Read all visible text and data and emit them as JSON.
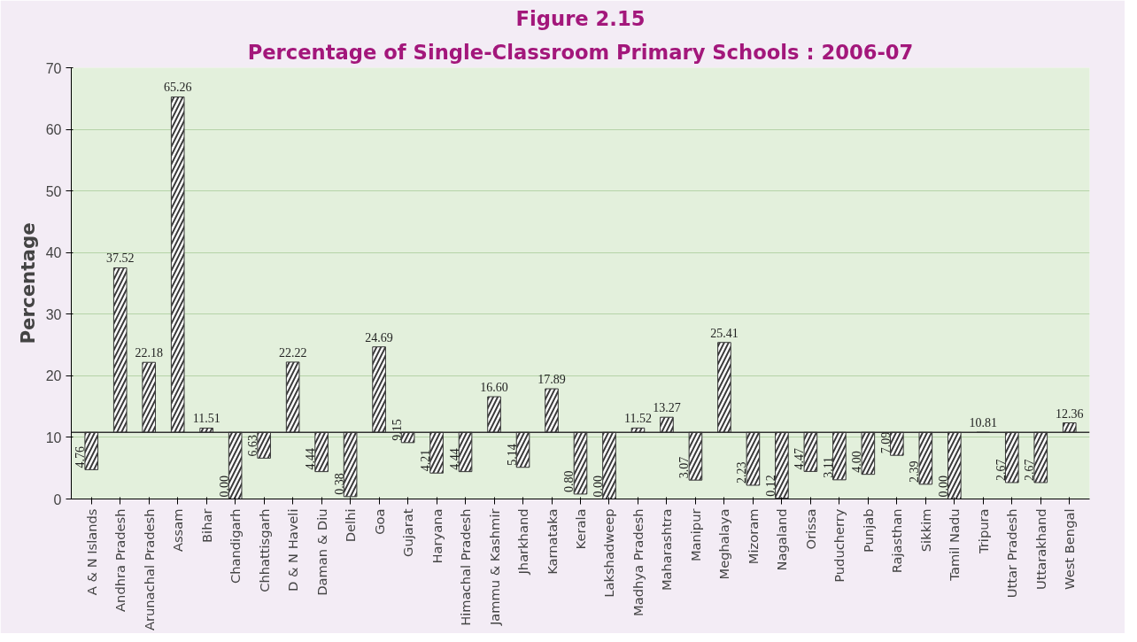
{
  "chart_data": {
    "type": "bar",
    "title": "Figure 2.15",
    "subtitle": "Percentage of Single-Classroom Primary Schools : 2006-07",
    "ylabel": "Percentage",
    "categories": [
      "A & N Islands",
      "Andhra Pradesh",
      "Arunachal Pradesh",
      "Assam",
      "Bihar",
      "Chandigarh",
      "Chhattisgarh",
      "D & N Haveli",
      "Daman & Diu",
      "Delhi",
      "Goa",
      "Gujarat",
      "Haryana",
      "Himachal Pradesh",
      "Jammu & Kashmir",
      "Jharkhand",
      "Karnataka",
      "Kerala",
      "Lakshadweep",
      "Madhya Pradesh",
      "Maharashtra",
      "Manipur",
      "Meghalaya",
      "Mizoram",
      "Nagaland",
      "Orissa",
      "Puducherry",
      "Punjab",
      "Rajasthan",
      "Sikkim",
      "Tamil Nadu",
      "Tripura",
      "Uttar Pradesh",
      "Uttarakhand",
      "West Bengal"
    ],
    "base": [
      10.81,
      10.81,
      10.81,
      10.81,
      10.81,
      10.81,
      10.81,
      10.81,
      10.81,
      10.81,
      10.81,
      10.81,
      10.81,
      10.81,
      10.81,
      10.81,
      10.81,
      10.81,
      10.81,
      10.81,
      10.81,
      10.81,
      10.81,
      10.81,
      10.81,
      10.81,
      10.81,
      10.81,
      10.81,
      10.81,
      10.81,
      10.81,
      10.81,
      10.81,
      10.81
    ],
    "values": [
      -6.05,
      26.71,
      11.37,
      54.45,
      0.7,
      -10.81,
      -4.18,
      11.41,
      -6.37,
      -10.43,
      13.88,
      -1.66,
      -6.6,
      -6.37,
      5.79,
      -5.67,
      7.08,
      -10.01,
      -10.81,
      0.71,
      2.46,
      -7.74,
      14.6,
      -8.58,
      -10.69,
      -6.34,
      -7.7,
      -6.81,
      -3.72,
      -8.42,
      -10.81,
      0.0,
      -8.14,
      -8.14,
      1.55
    ],
    "value_labels": [
      "4.76",
      "37.52",
      "22.18",
      "65.26",
      "11.51",
      "0.00",
      "6.63",
      "22.22",
      "4.44",
      "0.38",
      "24.69",
      "9.15",
      "4.21",
      "4.44",
      "16.60",
      "5.14",
      "17.89",
      "0.80",
      "0.00",
      "11.52",
      "13.27",
      "3.07",
      "25.41",
      "2.23",
      "0.12",
      "4.47",
      "3.11",
      "4.00",
      "7.09",
      "2.39",
      "0.00",
      "10.81",
      "2.67",
      "2.67",
      "12.36"
    ],
    "color": "#3a3a3a",
    "ylim": [
      0,
      70
    ],
    "yticks": [
      0,
      10,
      20,
      30,
      40,
      50,
      60,
      70
    ],
    "grid": "y",
    "ref_lines": [
      {
        "axis": "y",
        "value": 10.81,
        "color": "#333333"
      }
    ]
  }
}
